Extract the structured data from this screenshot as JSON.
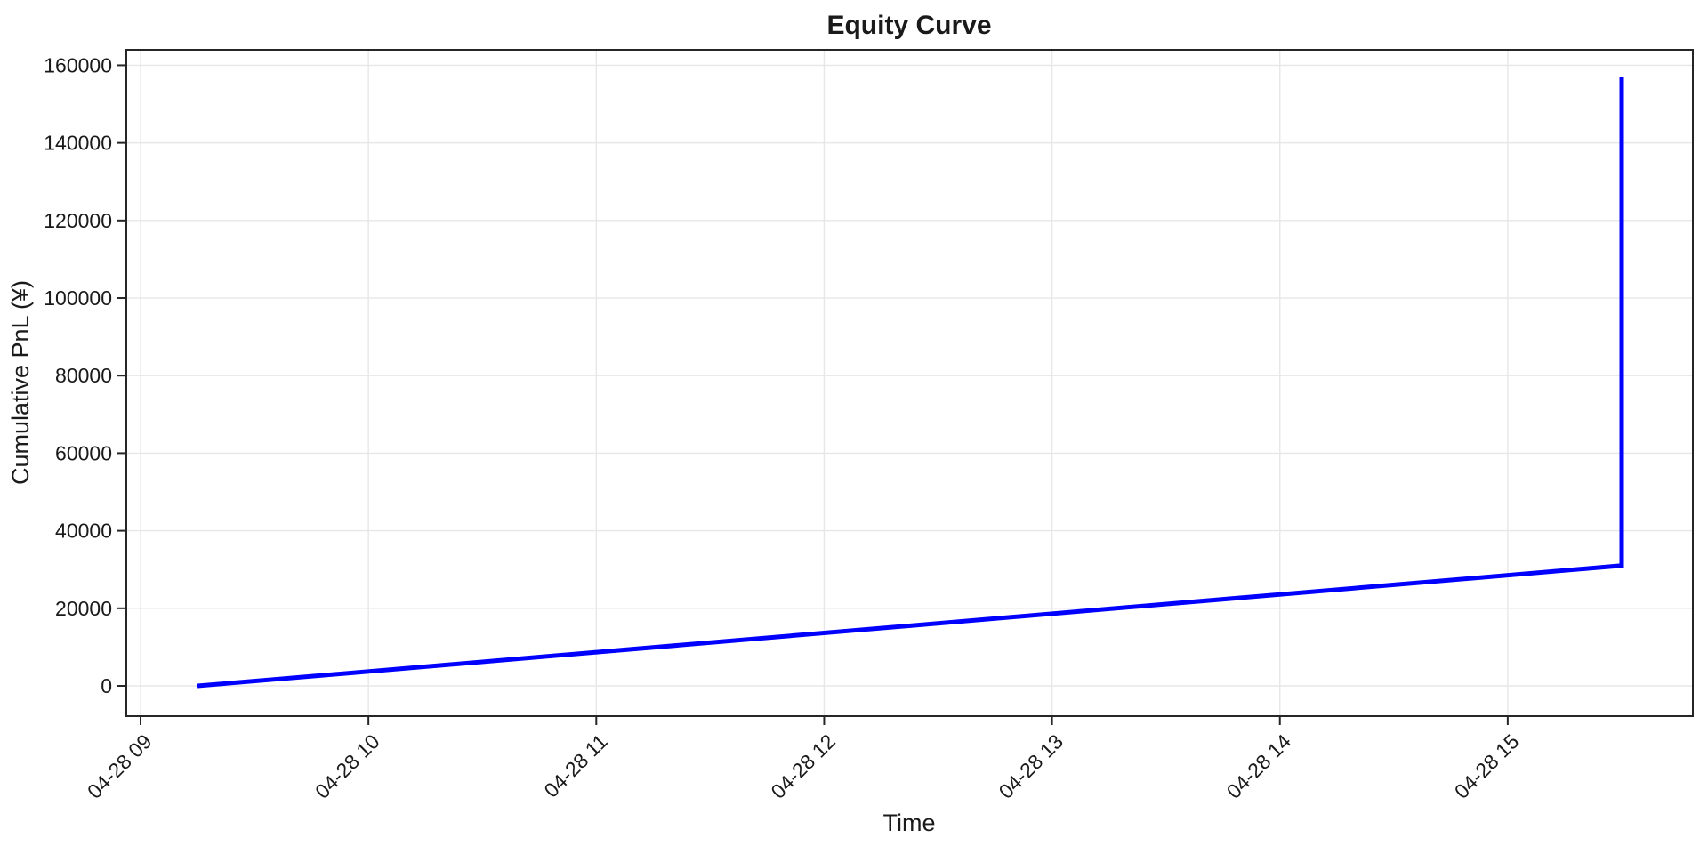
{
  "chart_data": {
    "type": "line",
    "title": "Equity Curve",
    "xlabel": "Time",
    "ylabel": "Cumulative PnL (¥)",
    "grid": true,
    "legend": false,
    "line_color": "#0000ff",
    "grid_color": "#e7e7e7",
    "axis_color": "#262626",
    "text_color": "#1a1a1a",
    "background_color": "#ffffff",
    "x_tick_labels": [
      "04-28 09",
      "04-28 10",
      "04-28 11",
      "04-28 12",
      "04-28 13",
      "04-28 14",
      "04-28 15"
    ],
    "x_tick_minutes": [
      540,
      600,
      660,
      720,
      780,
      840,
      900
    ],
    "xlim_minutes": [
      536.25,
      948.75
    ],
    "y_ticks": [
      0,
      20000,
      40000,
      60000,
      80000,
      100000,
      120000,
      140000,
      160000
    ],
    "ylim": [
      -7800,
      164000
    ],
    "series": [
      {
        "name": "Cumulative PnL",
        "points": [
          {
            "time": "04-28 09:15",
            "value": 0
          },
          {
            "time": "04-28 15:30",
            "value": 31000
          },
          {
            "time": "04-28 15:30",
            "value": 157000
          }
        ]
      }
    ]
  }
}
